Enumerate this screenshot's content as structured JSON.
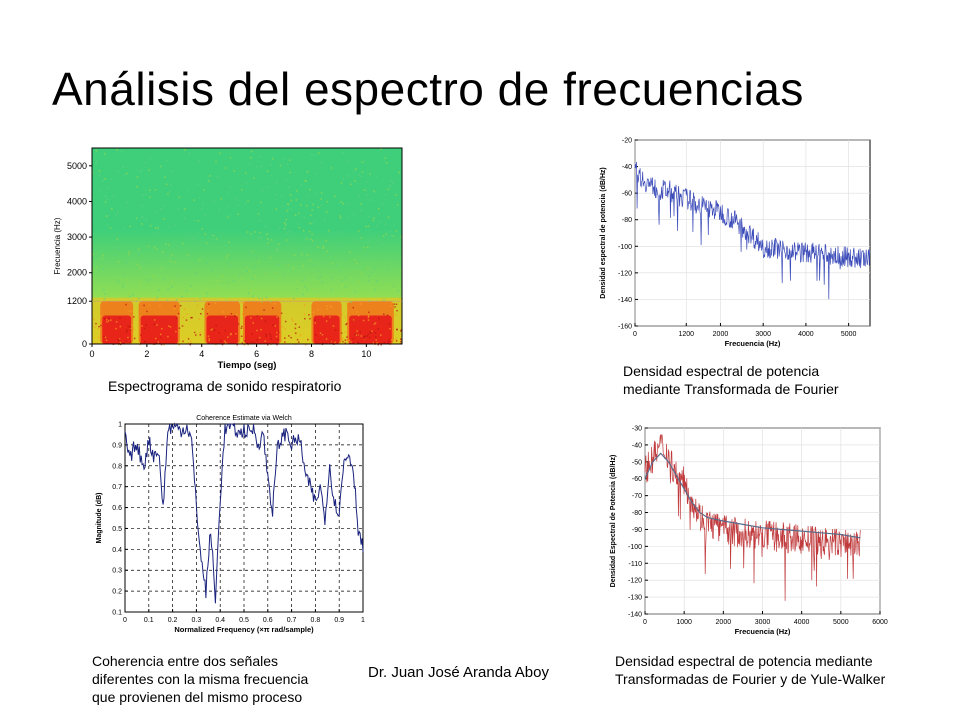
{
  "slide": {
    "title": "Análisis del espectro de frecuencias",
    "author": "Dr. Juan José Aranda Aboy"
  },
  "captions": {
    "spectrogram": "Espectrograma de sonido respiratorio",
    "psd_fourier": "Densidad espectral de potencia\nmediante Transformada de Fourier",
    "coherence": "Coherencia entre dos señales\ndiferentes con la misma frecuencia\nque provienen del mismo proceso",
    "psd_yule": "Densidad espectral de potencia mediante\nTransformadas de Fourier y de Yule-Walker"
  },
  "chart_data": [
    {
      "id": "spectrogram",
      "type": "heatmap",
      "xlabel": "Tiempo (seg)",
      "ylabel": "Frecuencia (Hz)",
      "xlim": [
        0,
        11.3
      ],
      "ylim": [
        0,
        5500
      ],
      "x_ticks": [
        0,
        2,
        4,
        6,
        8,
        10
      ],
      "y_ticks": [
        0,
        1200,
        2000,
        3000,
        4000,
        5000
      ],
      "high_energy_segments": [
        [
          0.3,
          1.5
        ],
        [
          1.7,
          3.2
        ],
        [
          4.1,
          5.4
        ],
        [
          5.5,
          6.9
        ],
        [
          8.0,
          9.1
        ],
        [
          9.3,
          11.0
        ]
      ],
      "colors": {
        "low": "#3fcf7a",
        "mid": "#c8e83a",
        "high": "#e8201a"
      },
      "grid": false
    },
    {
      "id": "psd_fourier",
      "type": "line",
      "xlabel": "Frecuencia (Hz)",
      "ylabel": "Densidad espectral de potencia (dB/Hz)",
      "xlim": [
        0,
        5500
      ],
      "ylim": [
        -160,
        -20
      ],
      "x_ticks": [
        0,
        1200,
        2000,
        3000,
        4000,
        5000
      ],
      "y_ticks": [
        -20,
        -40,
        -60,
        -80,
        -100,
        -120,
        -140,
        -160
      ],
      "grid": true,
      "series": [
        {
          "color": "#3a4ab8",
          "x": [
            0,
            200,
            400,
            600,
            800,
            1000,
            1200,
            1400,
            1600,
            1800,
            2000,
            2200,
            2400,
            2600,
            2800,
            3000,
            3200,
            3400,
            3600,
            3800,
            4000,
            4200,
            4400,
            4600,
            4800,
            5000,
            5200,
            5500
          ],
          "values": [
            -42,
            -50,
            -55,
            -58,
            -58,
            -62,
            -64,
            -67,
            -70,
            -72,
            -74,
            -78,
            -82,
            -88,
            -94,
            -100,
            -101,
            -102,
            -103,
            -104,
            -105,
            -105,
            -106,
            -107,
            -108,
            -108,
            -109,
            -110
          ]
        }
      ]
    },
    {
      "id": "coherence",
      "type": "line",
      "title": "Coherence Estimate via Welch",
      "xlabel": "Normalized Frequency (×π rad/sample)",
      "ylabel": "Magnitude (dB)",
      "xlim": [
        0,
        1
      ],
      "ylim": [
        0.1,
        1
      ],
      "x_ticks": [
        0,
        0.1,
        0.2,
        0.3,
        0.4,
        0.5,
        0.6,
        0.7,
        0.8,
        0.9,
        1
      ],
      "y_ticks": [
        0.1,
        0.2,
        0.3,
        0.4,
        0.5,
        0.6,
        0.7,
        0.8,
        0.9,
        1
      ],
      "grid": true,
      "series": [
        {
          "color": "#1a237e",
          "x": [
            0,
            0.02,
            0.04,
            0.06,
            0.08,
            0.1,
            0.12,
            0.14,
            0.16,
            0.18,
            0.2,
            0.22,
            0.24,
            0.26,
            0.28,
            0.3,
            0.32,
            0.34,
            0.36,
            0.38,
            0.4,
            0.42,
            0.44,
            0.46,
            0.48,
            0.5,
            0.52,
            0.54,
            0.56,
            0.58,
            0.6,
            0.62,
            0.64,
            0.66,
            0.68,
            0.7,
            0.72,
            0.74,
            0.76,
            0.78,
            0.8,
            0.82,
            0.84,
            0.86,
            0.88,
            0.9,
            0.92,
            0.94,
            0.96,
            0.98,
            1.0
          ],
          "values": [
            0.95,
            0.82,
            0.9,
            0.86,
            0.8,
            0.92,
            0.85,
            0.88,
            0.6,
            0.97,
            0.99,
            0.98,
            0.97,
            0.99,
            0.92,
            0.6,
            0.35,
            0.2,
            0.5,
            0.15,
            0.65,
            0.98,
            0.99,
            0.98,
            0.95,
            0.97,
            0.96,
            0.98,
            0.9,
            0.96,
            0.75,
            0.58,
            0.88,
            0.94,
            0.96,
            0.9,
            0.93,
            0.9,
            0.74,
            0.7,
            0.62,
            0.7,
            0.55,
            0.8,
            0.62,
            0.58,
            0.82,
            0.86,
            0.78,
            0.5,
            0.4
          ]
        }
      ]
    },
    {
      "id": "psd_yule",
      "type": "line",
      "xlabel": "Frecuencia (Hz)",
      "ylabel": "Densidad Espectral de Potencia (dB/Hz)",
      "xlim": [
        0,
        6000
      ],
      "ylim": [
        -140,
        -30
      ],
      "x_ticks": [
        0,
        1000,
        2000,
        3000,
        4000,
        5000,
        6000
      ],
      "y_ticks": [
        -30,
        -40,
        -50,
        -60,
        -70,
        -80,
        -90,
        -100,
        -110,
        -120,
        -130,
        -140
      ],
      "grid": true,
      "series": [
        {
          "name": "Fourier",
          "color": "#c0393b",
          "x": [
            0,
            200,
            400,
            600,
            800,
            1000,
            1200,
            1400,
            1600,
            1800,
            2000,
            2400,
            2800,
            3200,
            3600,
            4000,
            4400,
            4800,
            5200,
            5500
          ],
          "values": [
            -55,
            -48,
            -40,
            -46,
            -58,
            -62,
            -72,
            -82,
            -86,
            -88,
            -90,
            -92,
            -93,
            -94,
            -95,
            -96,
            -97,
            -98,
            -98,
            -99
          ]
        },
        {
          "name": "Yule-Walker",
          "color": "#5a6b8a",
          "x": [
            0,
            200,
            400,
            600,
            800,
            1000,
            1200,
            1400,
            1600,
            1800,
            2000,
            2500,
            3000,
            3500,
            4000,
            4500,
            5000,
            5500
          ],
          "values": [
            -60,
            -50,
            -45,
            -50,
            -58,
            -66,
            -74,
            -80,
            -83,
            -84,
            -85,
            -87,
            -89,
            -90,
            -91,
            -92,
            -93,
            -95
          ]
        }
      ]
    }
  ]
}
